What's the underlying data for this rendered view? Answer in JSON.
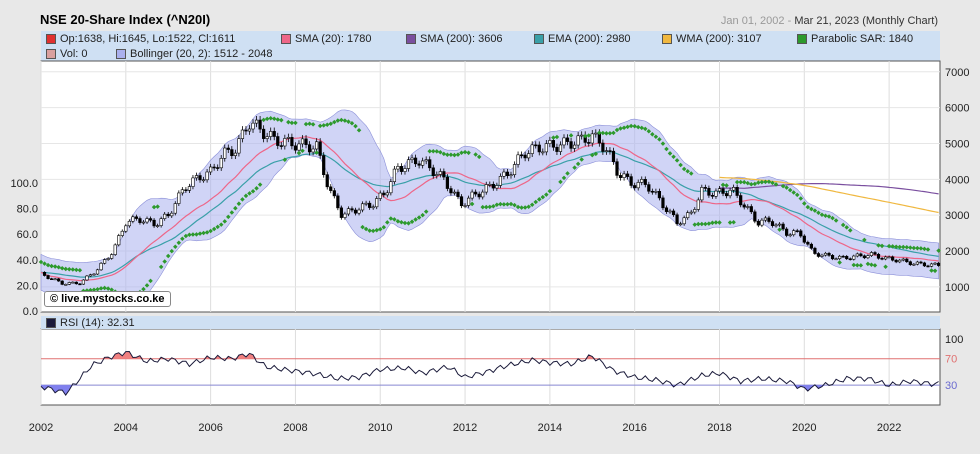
{
  "header": {
    "title": "NSE 20-Share Index (^N20I)",
    "date_start": "Jan 01, 2002",
    "date_end": "Mar 21, 2023 (Monthly Chart)"
  },
  "legend": {
    "items": [
      {
        "label": "Op:1638, Hi:1645, Lo:1522, Cl:1611",
        "color": "#e03030"
      },
      {
        "label": "SMA (20): 1780",
        "color": "#ee6688"
      },
      {
        "label": "SMA (200): 3606",
        "color": "#7a4f9f"
      },
      {
        "label": "EMA (200): 2980",
        "color": "#3aa0a8"
      },
      {
        "label": "WMA (200): 3107",
        "color": "#f0b840"
      },
      {
        "label": "Parabolic SAR: 1840",
        "color": "#2d9a2d"
      },
      {
        "label": "Vol: 0",
        "color": "#d9a0a0"
      },
      {
        "label": "Bollinger (20, 2): 1512 - 2048",
        "color": "#aab0ee"
      }
    ]
  },
  "watermark": "© live.mystocks.co.ke",
  "rsi": {
    "label": "RSI (14): 32.31"
  },
  "chart_data": [
    {
      "type": "candlestick",
      "title": "NSE 20-Share Index (^N20I)",
      "x_ticks": [
        "2002",
        "2004",
        "2006",
        "2008",
        "2010",
        "2012",
        "2014",
        "2016",
        "2018",
        "2020",
        "2022"
      ],
      "y_right_ticks": [
        1000,
        2000,
        3000,
        4000,
        5000,
        6000,
        7000
      ],
      "y_left_ticks": [
        "0.0",
        "20.0",
        "40.0",
        "60.0",
        "80.0",
        "100.0"
      ],
      "close_points": [
        [
          2002.0,
          1360
        ],
        [
          2002.5,
          1100
        ],
        [
          2002.9,
          1100
        ],
        [
          2003.3,
          1450
        ],
        [
          2003.7,
          2000
        ],
        [
          2004.0,
          2800
        ],
        [
          2004.3,
          2900
        ],
        [
          2004.7,
          2750
        ],
        [
          2005.0,
          3000
        ],
        [
          2005.4,
          3800
        ],
        [
          2005.8,
          4100
        ],
        [
          2006.0,
          4200
        ],
        [
          2006.3,
          4700
        ],
        [
          2006.6,
          4850
        ],
        [
          2006.9,
          5600
        ],
        [
          2007.1,
          5450
        ],
        [
          2007.5,
          5100
        ],
        [
          2007.9,
          5000
        ],
        [
          2008.2,
          4950
        ],
        [
          2008.5,
          4900
        ],
        [
          2008.8,
          3700
        ],
        [
          2009.1,
          3000
        ],
        [
          2009.5,
          3200
        ],
        [
          2009.8,
          3300
        ],
        [
          2010.1,
          3600
        ],
        [
          2010.4,
          4300
        ],
        [
          2010.9,
          4550
        ],
        [
          2011.2,
          4300
        ],
        [
          2011.5,
          4000
        ],
        [
          2011.9,
          3300
        ],
        [
          2012.2,
          3550
        ],
        [
          2012.6,
          3800
        ],
        [
          2013.0,
          4150
        ],
        [
          2013.4,
          4750
        ],
        [
          2013.8,
          4900
        ],
        [
          2014.2,
          4950
        ],
        [
          2014.6,
          5050
        ],
        [
          2015.0,
          5200
        ],
        [
          2015.3,
          4900
        ],
        [
          2015.6,
          4200
        ],
        [
          2015.9,
          3900
        ],
        [
          2016.3,
          3850
        ],
        [
          2016.7,
          3250
        ],
        [
          2017.0,
          2800
        ],
        [
          2017.3,
          3000
        ],
        [
          2017.6,
          3700
        ],
        [
          2017.9,
          3600
        ],
        [
          2018.3,
          3700
        ],
        [
          2018.6,
          3250
        ],
        [
          2018.9,
          2800
        ],
        [
          2019.2,
          2850
        ],
        [
          2019.6,
          2500
        ],
        [
          2019.9,
          2500
        ],
        [
          2020.2,
          1950
        ],
        [
          2020.6,
          1850
        ],
        [
          2020.9,
          1800
        ],
        [
          2021.2,
          1850
        ],
        [
          2021.6,
          1900
        ],
        [
          2021.9,
          1800
        ],
        [
          2022.2,
          1750
        ],
        [
          2022.6,
          1650
        ],
        [
          2023.0,
          1611
        ]
      ],
      "sma20": 1780,
      "sma200": 3606,
      "ema200": 2980,
      "wma200": 3107,
      "parabolic_sar": 1840,
      "bollinger": [
        1512,
        2048
      ]
    },
    {
      "type": "line",
      "title": "RSI (14)",
      "last_value": 32.31,
      "y_ticks": [
        30,
        70,
        100
      ],
      "x": [
        2002.0,
        2002.6,
        2003.2,
        2003.6,
        2004.0,
        2004.5,
        2005.0,
        2005.5,
        2006.0,
        2006.5,
        2006.9,
        2007.3,
        2007.8,
        2008.4,
        2009.0,
        2009.5,
        2010.0,
        2010.6,
        2011.0,
        2011.6,
        2012.0,
        2012.5,
        2013.0,
        2013.6,
        2014.0,
        2014.5,
        2015.0,
        2015.5,
        2016.0,
        2016.5,
        2017.0,
        2017.6,
        2018.0,
        2018.5,
        2019.0,
        2019.6,
        2020.0,
        2020.5,
        2021.0,
        2021.5,
        2022.0,
        2022.5,
        2023.0
      ],
      "values": [
        28,
        18,
        60,
        72,
        80,
        66,
        70,
        62,
        72,
        70,
        78,
        58,
        53,
        48,
        40,
        42,
        54,
        56,
        48,
        58,
        42,
        50,
        60,
        68,
        64,
        62,
        74,
        52,
        42,
        38,
        30,
        45,
        48,
        36,
        40,
        36,
        24,
        30,
        40,
        40,
        30,
        36,
        32
      ]
    }
  ]
}
